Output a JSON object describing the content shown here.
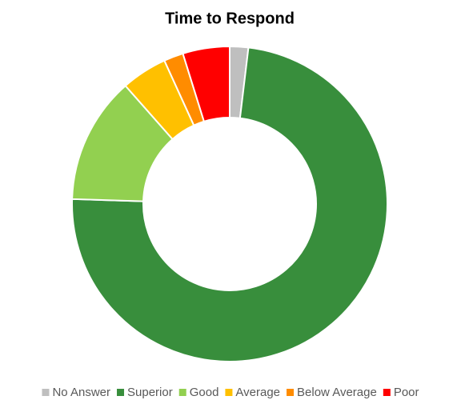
{
  "chart_data": {
    "type": "doughnut",
    "title": "Time to Respond",
    "categories": [
      "No Answer",
      "Superior",
      "Good",
      "Average",
      "Below Average",
      "Poor"
    ],
    "values": [
      1.9,
      73.6,
      13,
      4.7,
      2,
      4.8
    ],
    "colors": [
      "#bfbfbf",
      "#388e3c",
      "#92d050",
      "#ffc000",
      "#ff8c00",
      "#ff0000"
    ],
    "legend": "bottom"
  }
}
